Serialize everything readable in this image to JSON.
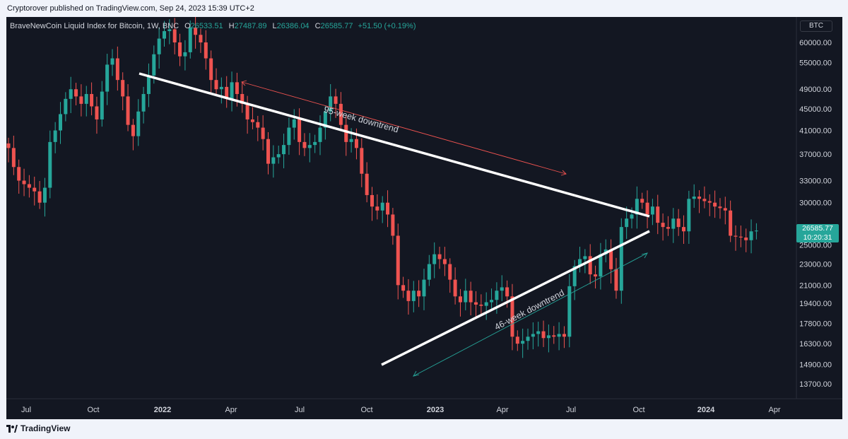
{
  "header": {
    "published": "Cryptorover published on TradingView.com, Sep 24, 2023 15:39 UTC+2"
  },
  "legend": {
    "title": "BraveNewCoin Liquid Index for Bitcoin, 1W, BNC",
    "o_label": "O",
    "o_value": "26533.51",
    "h_label": "H",
    "h_value": "27487.89",
    "l_label": "L",
    "l_value": "26386.04",
    "c_label": "C",
    "c_value": "26585.77",
    "change": "+51.50 (+0.19%)"
  },
  "symbol_box": "BTC",
  "price_tag": {
    "price": "26585.77",
    "countdown": "10:20:31"
  },
  "footer": {
    "brand": "TradingView"
  },
  "colors": {
    "background": "#131722",
    "up": "#26a69a",
    "down": "#ef5350",
    "text": "#d1d4dc",
    "frame": "#f0f3fa"
  },
  "chart_data": {
    "type": "candlestick",
    "title": "BraveNewCoin Liquid Index for Bitcoin, 1W, BNC",
    "y_scale": "log",
    "ylim": [
      12700,
      66000
    ],
    "x_ticks": [
      "Jul",
      "Oct",
      "2022",
      "Apr",
      "Jul",
      "Oct",
      "2023",
      "Apr",
      "Jul",
      "Oct",
      "2024",
      "Apr"
    ],
    "y_ticks": [
      "60000.00",
      "55000.00",
      "49000.00",
      "45000.00",
      "41000.00",
      "37000.00",
      "33000.00",
      "30000.00",
      "27000.00",
      "25000.00",
      "23000.00",
      "21000.00",
      "19400.00",
      "17800.00",
      "16300.00",
      "14900.00",
      "13700.00"
    ],
    "last_close": 26585.77,
    "closes": [
      38000,
      35000,
      33000,
      32500,
      32000,
      31500,
      30000,
      32000,
      39000,
      41000,
      44000,
      47000,
      49000,
      47500,
      46000,
      48000,
      45500,
      43000,
      48500,
      54500,
      56000,
      51000,
      47500,
      42000,
      40000,
      44500,
      48000,
      52000,
      57000,
      61000,
      63000,
      63500,
      60000,
      56500,
      57500,
      64000,
      62000,
      60000,
      56000,
      51000,
      49000,
      49500,
      47000,
      50500,
      48000,
      46000,
      43000,
      42500,
      41500,
      39500,
      35500,
      36500,
      37000,
      38500,
      41500,
      43000,
      39000,
      38000,
      38500,
      39000,
      41500,
      44500,
      47500,
      46000,
      42000,
      39000,
      39500,
      38000,
      34000,
      31000,
      29500,
      29000,
      30000,
      28500,
      26000,
      21000,
      20500,
      19600,
      20500,
      20000,
      21500,
      23000,
      24000,
      23500,
      23000,
      21500,
      20000,
      19500,
      20500,
      19500,
      19300,
      19200,
      19500,
      19700,
      20500,
      20800,
      20000,
      16800,
      16300,
      16500,
      16800,
      17000,
      17200,
      16700,
      16900,
      16800,
      17000,
      16800,
      20900,
      22800,
      23500,
      23800,
      22000,
      21800,
      24000,
      24500,
      22500,
      20500,
      27000,
      28000,
      28500,
      30500,
      30000,
      28500,
      29500,
      27500,
      27000,
      26800,
      28000,
      27000,
      26500,
      30500,
      30800,
      30500,
      30200,
      30000,
      29500,
      29300,
      29000,
      26000,
      25900,
      25800,
      25500,
      26500,
      26585.77
    ]
  }
}
